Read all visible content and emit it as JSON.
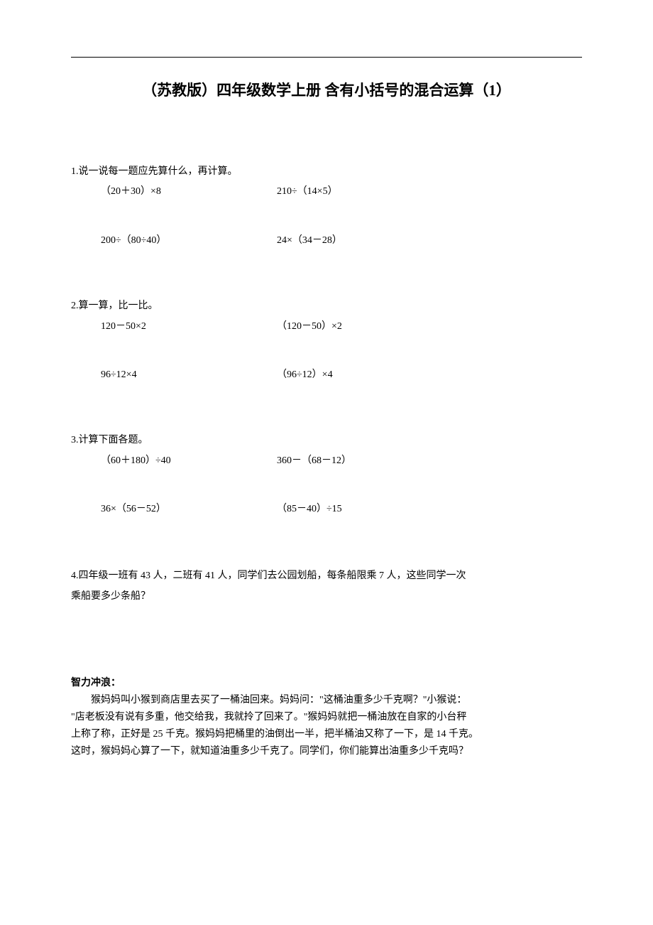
{
  "title": "（苏教版）四年级数学上册 含有小括号的混合运算（1）",
  "q1": {
    "prompt": "1.说一说每一题应先算什么，再计算。",
    "row1": {
      "left": "（20＋30）×8",
      "right": "210÷（14×5）"
    },
    "row2": {
      "left": "200÷（80÷40）",
      "right": "24×（34－28）"
    }
  },
  "q2": {
    "prompt": "2.算一算，比一比。",
    "row1": {
      "left": "120－50×2",
      "right": "（120－50）×2"
    },
    "row2": {
      "left": "96÷12×4",
      "right": "（96÷12）×4"
    }
  },
  "q3": {
    "prompt": "3.计算下面各题。",
    "row1": {
      "left": "（60＋180）÷40",
      "right": "360－（68－12）"
    },
    "row2": {
      "left": "36×（56－52）",
      "right": "（85－40）÷15"
    }
  },
  "q4": {
    "line1": "4.四年级一班有 43 人，二班有 41 人，同学们去公园划船，每条船限乘 7 人，这些同学一次",
    "line2": "乘船要多少条船？"
  },
  "bonus": {
    "heading": "智力冲浪：",
    "p1": "猴妈妈叫小猴到商店里去买了一桶油回来。妈妈问：\"这桶油重多少千克啊？\"小猴说：",
    "p2": "\"店老板没有说有多重，他交给我，我就拎了回来了。\"猴妈妈就把一桶油放在自家的小台秤",
    "p3": "上称了称，正好是 25 千克。猴妈妈把桶里的油倒出一半，把半桶油又称了一下，是 14 千克。",
    "p4": "这时，猴妈妈心算了一下，就知道油重多少千克了。同学们，你们能算出油重多少千克吗？"
  },
  "colors": {
    "text": "#000000",
    "background": "#ffffff"
  },
  "typography": {
    "title_fontsize": 21,
    "body_fontsize": 14,
    "font_family": "SimSun"
  }
}
